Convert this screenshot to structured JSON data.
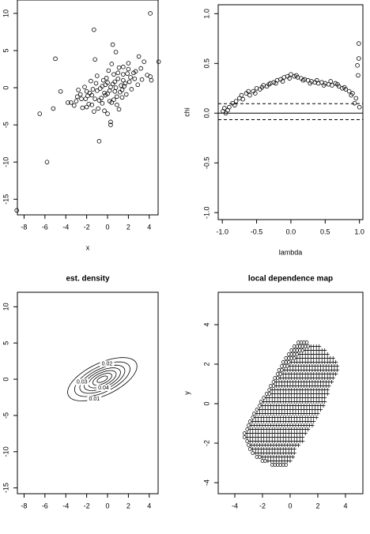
{
  "chart_data": [
    {
      "type": "scatter",
      "x_label": "x",
      "x": [
        -8.7,
        4.1,
        -1.3,
        -5.0,
        -6.5,
        -5.8,
        -5.2,
        -4.5,
        -0.8,
        0.3,
        0.3,
        4.9,
        4.1,
        4.2,
        -1.2,
        0.5,
        0.8,
        1.5,
        2.0,
        2.5,
        3.0,
        3.5,
        -3.5,
        -3.0,
        -2.5,
        -2.0,
        -1.5,
        -1.0,
        -0.5,
        0,
        0.5,
        1.0,
        1.5,
        2.0,
        -2.8,
        -2.2,
        -1.8,
        -1.2,
        -0.7,
        -0.2,
        0.2,
        0.7,
        1.2,
        1.7,
        2.2,
        2.7,
        -1.6,
        -1.0,
        -0.4,
        0.1,
        0.6,
        1.1,
        1.6,
        2.1,
        -0.9,
        -0.3,
        0.4,
        0.9,
        1.4,
        -2.4,
        -1.9,
        -1.4,
        -0.6,
        0.0,
        0.7,
        1.3,
        1.9,
        2.6,
        3.2,
        -3.8,
        -3.2,
        -2.6,
        -2.0,
        -1.3,
        -0.5,
        0.2,
        0.9,
        1.8,
        2.9,
        3.8,
        -0.2,
        0.4,
        1.0,
        -1.1,
        -0.1,
        0.6,
        1.5,
        2.3,
        3.3,
        -2.1,
        -1.5,
        -0.8,
        -0.3,
        0.3,
        1.1,
        -1.7,
        0.0,
        1.4,
        -2.9,
        0.8
      ],
      "y": [
        -16.5,
        10,
        7.8,
        3.9,
        -3.5,
        -10,
        -2.8,
        -0.5,
        -7.2,
        -5,
        -4.6,
        3.5,
        1.5,
        1.0,
        3.8,
        5.8,
        4.8,
        2.8,
        3.3,
        2.0,
        4.2,
        3.5,
        -2.0,
        -1.8,
        -1.5,
        -2.6,
        -1.0,
        -0.4,
        0.2,
        -0.8,
        0.5,
        1.2,
        1.8,
        2.5,
        -0.3,
        0.1,
        -2.2,
        -1.5,
        -0.1,
        0.4,
        -1.8,
        0.8,
        -0.6,
        0.6,
        1.4,
        2.2,
        0.9,
        1.6,
        1.0,
        2.3,
        1.8,
        2.7,
        0.2,
        0.8,
        -2.8,
        -3.1,
        -2.0,
        -1.2,
        -0.3,
        -2.7,
        -1.1,
        -0.2,
        -1.4,
        0.7,
        -0.5,
        0.3,
        1.9,
        1.2,
        2.6,
        -2.0,
        -2.4,
        -0.9,
        -0.5,
        -3.2,
        -2.1,
        -0.4,
        -2.3,
        -0.9,
        0.4,
        1.7,
        -1.0,
        3.2,
        2.0,
        0.6,
        1.3,
        -1.6,
        1.0,
        -0.2,
        1.1,
        -1.5,
        -2.3,
        -1.7,
        -0.7,
        0.1,
        -2.9,
        -0.7,
        -3.5,
        -1.3,
        -1.2,
        0.0
      ],
      "xlim": [
        -8.64,
        4.85
      ],
      "ylim": [
        -17.1,
        11.8
      ],
      "xticks": [
        -8,
        -6,
        -4,
        -2,
        0,
        2,
        4
      ],
      "yticks": [
        -15,
        -10,
        -5,
        0,
        5,
        10
      ],
      "color": "#000000"
    },
    {
      "type": "scatter",
      "x_label": "lambda",
      "y_label": "chi",
      "x": [
        -0.99,
        -0.97,
        -0.95,
        -0.9,
        -0.85,
        -0.8,
        -0.75,
        -0.7,
        -0.65,
        -0.6,
        -0.55,
        -0.5,
        -0.45,
        -0.4,
        -0.35,
        -0.3,
        -0.25,
        -0.2,
        -0.15,
        -0.1,
        -0.05,
        0,
        0.05,
        0.1,
        0.15,
        0.2,
        0.25,
        0.3,
        0.35,
        0.4,
        0.45,
        0.5,
        0.55,
        0.6,
        0.65,
        0.7,
        0.75,
        0.8,
        0.85,
        0.9,
        0.93,
        0.95,
        0.97,
        0.99,
        -0.92,
        -0.82,
        -0.72,
        -0.62,
        -0.52,
        -0.42,
        -0.32,
        -0.22,
        -0.12,
        -0.02,
        0.08,
        0.18,
        0.28,
        0.38,
        0.48,
        0.58,
        0.68,
        0.78,
        0.88,
        0.98,
        1.0,
        0.99
      ],
      "y": [
        0.02,
        0.05,
        0.0,
        0.06,
        0.1,
        0.12,
        0.15,
        0.14,
        0.2,
        0.18,
        0.22,
        0.25,
        0.24,
        0.28,
        0.27,
        0.3,
        0.31,
        0.33,
        0.34,
        0.36,
        0.37,
        0.39,
        0.37,
        0.36,
        0.35,
        0.34,
        0.33,
        0.32,
        0.31,
        0.3,
        0.31,
        0.3,
        0.29,
        0.28,
        0.3,
        0.27,
        0.25,
        0.24,
        0.22,
        0.2,
        0.1,
        0.15,
        0.48,
        0.7,
        0.03,
        0.08,
        0.18,
        0.22,
        0.2,
        0.26,
        0.29,
        0.3,
        0.32,
        0.35,
        0.38,
        0.33,
        0.3,
        0.33,
        0.28,
        0.32,
        0.29,
        0.26,
        0.18,
        0.38,
        0.06,
        0.55
      ],
      "xlim": [
        -1.06,
        1.05
      ],
      "ylim": [
        -1.07,
        1.09
      ],
      "xticks": [
        {
          "value": -1,
          "label": "-1.0"
        },
        -0.5,
        {
          "value": 0,
          "label": "0.0"
        },
        0.5,
        {
          "value": 1,
          "label": "1.0"
        }
      ],
      "yticks": [
        {
          "value": -1,
          "label": "-1.0"
        },
        -0.5,
        {
          "value": 0,
          "label": "0.0"
        },
        0.5,
        {
          "value": 1,
          "label": "1.0"
        }
      ],
      "hlines": [
        {
          "value": 0,
          "style": "solid"
        },
        {
          "value": 0.095,
          "style": "dashed"
        },
        {
          "value": -0.065,
          "style": "dashed"
        }
      ],
      "color": "#000000"
    },
    {
      "type": "contour",
      "title": "est. density",
      "center": [
        -0.5,
        0
      ],
      "angle": 40,
      "contours": [
        {
          "level": 0.01,
          "rx": 4.0,
          "ry": 2.0,
          "labeled": true
        },
        {
          "level": 0.02,
          "rx": 3.2,
          "ry": 1.6,
          "labeled": true
        },
        {
          "level": 0.03,
          "rx": 2.6,
          "ry": 1.3,
          "labeled": true
        },
        {
          "level": 0.04,
          "rx": 2.1,
          "ry": 1.05,
          "labeled": true
        },
        {
          "level": 0.05,
          "rx": 1.6,
          "ry": 0.8,
          "labeled": false
        },
        {
          "level": 0.06,
          "rx": 1.1,
          "ry": 0.55,
          "labeled": false
        },
        {
          "level": 0.07,
          "rx": 0.6,
          "ry": 0.3,
          "labeled": false
        }
      ],
      "xlim": [
        -8.64,
        4.85
      ],
      "ylim": [
        -15.8,
        12
      ],
      "xticks": [
        -8,
        -6,
        -4,
        -2,
        0,
        2,
        4
      ],
      "yticks": [
        -15,
        -10,
        -5,
        0,
        5,
        10
      ],
      "color": "#000000"
    },
    {
      "type": "symbol-map",
      "title": "local dependence map",
      "y_label": "y",
      "step": 0.2,
      "rows": [
        {
          "y": -3.1,
          "from": -1.3,
          "to": -0.3,
          "circles": 6
        },
        {
          "y": -2.9,
          "from": -2.0,
          "to": 0.0,
          "circles": 2
        },
        {
          "y": -2.7,
          "from": -2.4,
          "to": 0.2,
          "circles": 2
        },
        {
          "y": -2.5,
          "from": -2.7,
          "to": 0.3,
          "circles": 1
        },
        {
          "y": -2.3,
          "from": -2.9,
          "to": 0.4,
          "circles": 1
        },
        {
          "y": -2.1,
          "from": -3.0,
          "to": 0.6,
          "circles": 1
        },
        {
          "y": -1.9,
          "from": -3.1,
          "to": 0.8,
          "circles": 1
        },
        {
          "y": -1.7,
          "from": -3.3,
          "to": 1.0,
          "circles": 1
        },
        {
          "y": -1.5,
          "from": -3.3,
          "to": 1.1,
          "circles": 1
        },
        {
          "y": -1.3,
          "from": -3.1,
          "to": 1.3,
          "circles": 1
        },
        {
          "y": -1.1,
          "from": -3.0,
          "to": 1.5,
          "circles": 1
        },
        {
          "y": -0.9,
          "from": -2.9,
          "to": 1.7,
          "circles": 1
        },
        {
          "y": -0.7,
          "from": -2.7,
          "to": 1.8,
          "circles": 1
        },
        {
          "y": -0.5,
          "from": -2.6,
          "to": 2.0,
          "circles": 1
        },
        {
          "y": -0.3,
          "from": -2.4,
          "to": 2.1,
          "circles": 1
        },
        {
          "y": -0.1,
          "from": -2.2,
          "to": 2.3,
          "circles": 1
        },
        {
          "y": 0.1,
          "from": -2.1,
          "to": 2.4,
          "circles": 1
        },
        {
          "y": 0.3,
          "from": -1.9,
          "to": 2.5,
          "circles": 1
        },
        {
          "y": 0.5,
          "from": -1.7,
          "to": 2.7,
          "circles": 2
        },
        {
          "y": 0.7,
          "from": -1.5,
          "to": 2.8,
          "circles": 1
        },
        {
          "y": 0.9,
          "from": -1.4,
          "to": 2.9,
          "circles": 2
        },
        {
          "y": 1.1,
          "from": -1.2,
          "to": 3.0,
          "circles": 1
        },
        {
          "y": 1.3,
          "from": -1.1,
          "to": 3.1,
          "circles": 2
        },
        {
          "y": 1.5,
          "from": -0.9,
          "to": 3.3,
          "circles": 2
        },
        {
          "y": 1.7,
          "from": -0.8,
          "to": 3.4,
          "circles": 2
        },
        {
          "y": 1.9,
          "from": -0.6,
          "to": 3.4,
          "circles": 3
        },
        {
          "y": 2.1,
          "from": -0.5,
          "to": 3.3,
          "circles": 3
        },
        {
          "y": 2.3,
          "from": -0.3,
          "to": 3.1,
          "circles": 4
        },
        {
          "y": 2.5,
          "from": -0.1,
          "to": 2.8,
          "circles": 4
        },
        {
          "y": 2.7,
          "from": 0.1,
          "to": 2.5,
          "circles": 5
        },
        {
          "y": 2.9,
          "from": 0.3,
          "to": 2.0,
          "circles": 6
        },
        {
          "y": 3.1,
          "from": 0.6,
          "to": 1.2,
          "circles": 4
        }
      ],
      "xlim": [
        -5.2,
        5.26
      ],
      "ylim": [
        -4.56,
        5.64
      ],
      "xticks": [
        -4,
        -2,
        0,
        2,
        4
      ],
      "yticks": [
        -4,
        -2,
        0,
        2,
        4
      ],
      "color": "#000000"
    }
  ]
}
